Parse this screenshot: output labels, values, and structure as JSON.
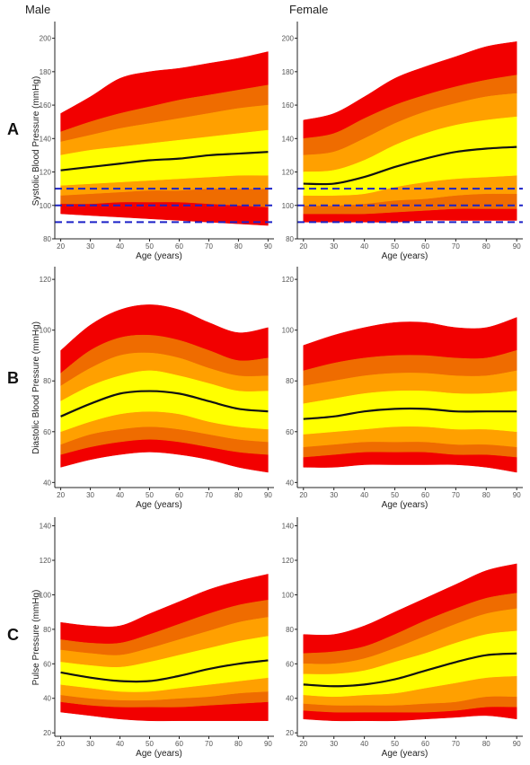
{
  "figure": {
    "column_titles": [
      "Male",
      "Female"
    ],
    "row_letters": [
      "A",
      "B",
      "C"
    ]
  },
  "colors": {
    "outer_band": "#f20000",
    "second_band": "#ef6c00",
    "third_band": "#ffa000",
    "inner_band": "#ffff00",
    "median_line": "#111111",
    "reference_lines": "#1c22c8"
  },
  "chart_data": [
    {
      "type": "area",
      "panel": "A",
      "column": "Male",
      "xlabel": "Age (years)",
      "ylabel": "Systolic Blood Pressure (mmHg)",
      "xlim": [
        18,
        92
      ],
      "ylim": [
        80,
        210
      ],
      "xticks": [
        20,
        30,
        40,
        50,
        60,
        70,
        80,
        90
      ],
      "yticks": [
        80,
        100,
        120,
        140,
        160,
        180,
        200
      ],
      "reference_lines": [
        90,
        100,
        110
      ],
      "x": [
        20,
        30,
        40,
        50,
        60,
        70,
        80,
        90
      ],
      "bands": {
        "upper": [
          [
            155,
            165,
            176,
            180,
            182,
            185,
            188,
            192
          ],
          [
            144,
            150,
            155,
            159,
            163,
            166,
            169,
            172
          ],
          [
            138,
            142,
            146,
            149,
            152,
            155,
            158,
            160
          ],
          [
            130,
            133,
            135,
            137,
            139,
            141,
            143,
            145
          ]
        ],
        "median": [
          121,
          123,
          125,
          127,
          128,
          130,
          131,
          132
        ],
        "lower": [
          [
            112,
            113,
            114,
            115,
            116,
            117,
            118,
            118
          ],
          [
            106,
            107,
            108,
            109,
            109,
            110,
            110,
            110
          ],
          [
            101,
            101,
            102,
            102,
            102,
            101,
            100,
            99
          ],
          [
            95,
            94,
            93,
            92,
            91,
            90,
            89,
            88
          ]
        ]
      }
    },
    {
      "type": "area",
      "panel": "A",
      "column": "Female",
      "xlabel": "Age (years)",
      "ylabel": "",
      "xlim": [
        18,
        92
      ],
      "ylim": [
        80,
        210
      ],
      "xticks": [
        20,
        30,
        40,
        50,
        60,
        70,
        80,
        90
      ],
      "yticks": [
        80,
        100,
        120,
        140,
        160,
        180,
        200
      ],
      "reference_lines": [
        90,
        100,
        110
      ],
      "x": [
        20,
        30,
        40,
        50,
        60,
        70,
        80,
        90
      ],
      "bands": {
        "upper": [
          [
            151,
            155,
            165,
            176,
            183,
            189,
            195,
            198
          ],
          [
            140,
            143,
            152,
            160,
            166,
            171,
            175,
            178
          ],
          [
            130,
            132,
            140,
            149,
            156,
            161,
            165,
            167
          ],
          [
            120,
            121,
            127,
            136,
            143,
            148,
            151,
            153
          ]
        ],
        "median": [
          113,
          113,
          117,
          123,
          128,
          132,
          134,
          135
        ],
        "lower": [
          [
            106,
            106,
            107,
            111,
            114,
            116,
            117,
            118
          ],
          [
            100,
            100,
            101,
            103,
            104,
            106,
            107,
            107
          ],
          [
            95,
            95,
            95,
            96,
            97,
            98,
            98,
            98
          ],
          [
            90,
            90,
            90,
            90,
            91,
            91,
            91,
            91
          ]
        ]
      }
    },
    {
      "type": "area",
      "panel": "B",
      "column": "Male",
      "xlabel": "Age (years)",
      "ylabel": "Diastolic Blood Pressure (mmHg)",
      "xlim": [
        18,
        92
      ],
      "ylim": [
        38,
        125
      ],
      "xticks": [
        20,
        30,
        40,
        50,
        60,
        70,
        80,
        90
      ],
      "yticks": [
        40,
        60,
        80,
        100,
        120
      ],
      "reference_lines": [],
      "x": [
        20,
        30,
        40,
        50,
        60,
        70,
        80,
        90
      ],
      "bands": {
        "upper": [
          [
            92,
            102,
            108,
            110,
            108,
            103,
            99,
            101
          ],
          [
            83,
            92,
            97,
            98,
            96,
            92,
            88,
            89
          ],
          [
            78,
            85,
            90,
            91,
            89,
            85,
            82,
            82
          ],
          [
            72,
            78,
            82,
            84,
            82,
            79,
            76,
            76
          ]
        ],
        "median": [
          66,
          71,
          75,
          76,
          75,
          72,
          69,
          68
        ],
        "lower": [
          [
            60,
            64,
            67,
            68,
            67,
            64,
            62,
            61
          ],
          [
            55,
            59,
            61,
            62,
            61,
            59,
            57,
            56
          ],
          [
            51,
            54,
            56,
            57,
            56,
            54,
            52,
            51
          ],
          [
            46,
            49,
            51,
            52,
            51,
            49,
            46,
            44
          ]
        ]
      }
    },
    {
      "type": "area",
      "panel": "B",
      "column": "Female",
      "xlabel": "Age (years)",
      "ylabel": "",
      "xlim": [
        18,
        92
      ],
      "ylim": [
        38,
        125
      ],
      "xticks": [
        20,
        30,
        40,
        50,
        60,
        70,
        80,
        90
      ],
      "yticks": [
        40,
        60,
        80,
        100,
        120
      ],
      "reference_lines": [],
      "x": [
        20,
        30,
        40,
        50,
        60,
        70,
        80,
        90
      ],
      "bands": {
        "upper": [
          [
            94,
            98,
            101,
            103,
            103,
            101,
            101,
            105
          ],
          [
            84,
            87,
            89,
            90,
            90,
            89,
            89,
            92
          ],
          [
            78,
            80,
            82,
            83,
            83,
            82,
            82,
            84
          ],
          [
            71,
            73,
            75,
            76,
            76,
            75,
            75,
            76
          ]
        ],
        "median": [
          65,
          66,
          68,
          69,
          69,
          68,
          68,
          68
        ],
        "lower": [
          [
            59,
            60,
            61,
            62,
            62,
            61,
            61,
            60
          ],
          [
            54,
            55,
            56,
            56,
            56,
            55,
            55,
            54
          ],
          [
            50,
            51,
            52,
            52,
            52,
            51,
            51,
            50
          ],
          [
            46,
            46,
            47,
            47,
            47,
            47,
            46,
            44
          ]
        ]
      }
    },
    {
      "type": "area",
      "panel": "C",
      "column": "Male",
      "xlabel": "Age (years)",
      "ylabel": "Pulse Pressure (mmHg)",
      "xlim": [
        18,
        92
      ],
      "ylim": [
        18,
        145
      ],
      "xticks": [
        20,
        30,
        40,
        50,
        60,
        70,
        80,
        90
      ],
      "yticks": [
        20,
        40,
        60,
        80,
        100,
        120,
        140
      ],
      "reference_lines": [],
      "x": [
        20,
        30,
        40,
        50,
        60,
        70,
        80,
        90
      ],
      "bands": {
        "upper": [
          [
            84,
            82,
            82,
            89,
            96,
            103,
            108,
            112
          ],
          [
            74,
            72,
            72,
            77,
            83,
            89,
            94,
            97
          ],
          [
            68,
            66,
            65,
            69,
            74,
            79,
            84,
            87
          ],
          [
            61,
            59,
            58,
            61,
            65,
            69,
            73,
            76
          ]
        ],
        "median": [
          55,
          52,
          50,
          50,
          53,
          57,
          60,
          62
        ],
        "lower": [
          [
            48,
            46,
            44,
            44,
            46,
            48,
            50,
            52
          ],
          [
            42,
            40,
            39,
            39,
            40,
            41,
            43,
            44
          ],
          [
            38,
            36,
            35,
            35,
            35,
            36,
            37,
            38
          ],
          [
            32,
            30,
            28,
            27,
            27,
            27,
            27,
            27
          ]
        ]
      }
    },
    {
      "type": "area",
      "panel": "C",
      "column": "Female",
      "xlabel": "Age (years)",
      "ylabel": "",
      "xlim": [
        18,
        92
      ],
      "ylim": [
        18,
        145
      ],
      "xticks": [
        20,
        30,
        40,
        50,
        60,
        70,
        80,
        90
      ],
      "yticks": [
        20,
        40,
        60,
        80,
        100,
        120,
        140
      ],
      "reference_lines": [],
      "x": [
        20,
        30,
        40,
        50,
        60,
        70,
        80,
        90
      ],
      "bands": {
        "upper": [
          [
            77,
            77,
            82,
            90,
            98,
            106,
            114,
            118
          ],
          [
            66,
            67,
            70,
            77,
            85,
            92,
            98,
            101
          ],
          [
            60,
            60,
            63,
            69,
            76,
            83,
            89,
            92
          ],
          [
            54,
            54,
            56,
            61,
            66,
            72,
            77,
            79
          ]
        ],
        "median": [
          48,
          47,
          48,
          51,
          56,
          61,
          65,
          66
        ],
        "lower": [
          [
            42,
            41,
            42,
            43,
            46,
            49,
            52,
            53
          ],
          [
            37,
            36,
            36,
            36,
            37,
            38,
            41,
            41
          ],
          [
            33,
            32,
            32,
            32,
            32,
            33,
            35,
            35
          ],
          [
            28,
            27,
            27,
            27,
            28,
            29,
            30,
            28
          ]
        ]
      }
    }
  ]
}
